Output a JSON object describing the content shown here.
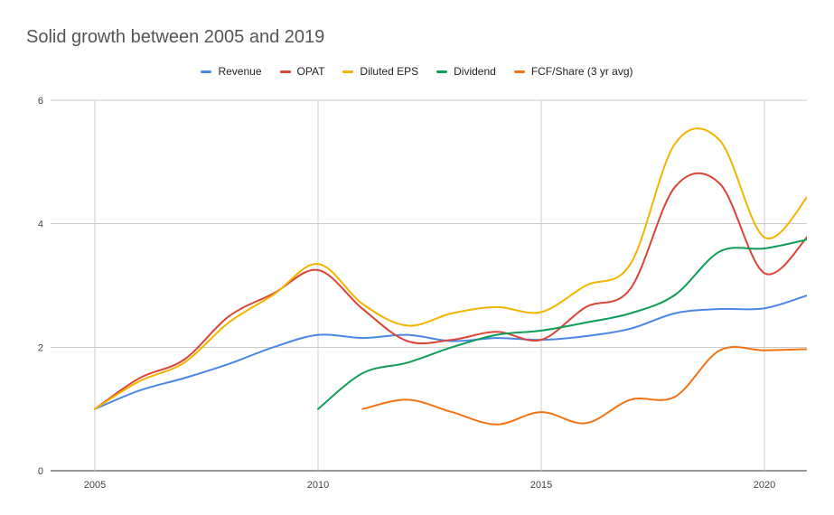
{
  "chart_data": {
    "type": "line",
    "title": "Solid growth between 2005 and 2019",
    "xlabel": "",
    "ylabel": "",
    "xlim": [
      2004,
      2021
    ],
    "ylim": [
      0,
      6
    ],
    "x_ticks": [
      "2005",
      "2010",
      "2015",
      "2020"
    ],
    "y_ticks": [
      "0",
      "2",
      "4",
      "6"
    ],
    "grid": true,
    "legend_position": "top",
    "x": [
      2005,
      2006,
      2007,
      2008,
      2009,
      2010,
      2011,
      2012,
      2013,
      2014,
      2015,
      2016,
      2017,
      2018,
      2019,
      2020,
      2021
    ],
    "series": [
      {
        "name": "Revenue",
        "color": "#4a86e8",
        "values": [
          1.0,
          1.3,
          1.5,
          1.73,
          2.0,
          2.2,
          2.15,
          2.2,
          2.1,
          2.15,
          2.12,
          2.18,
          2.3,
          2.55,
          2.62,
          2.63,
          2.85
        ]
      },
      {
        "name": "OPAT",
        "color": "#db4437",
        "values": [
          1.0,
          1.5,
          1.8,
          2.5,
          2.87,
          3.25,
          2.62,
          2.1,
          2.12,
          2.25,
          2.12,
          2.65,
          2.95,
          4.6,
          4.65,
          3.2,
          3.82
        ]
      },
      {
        "name": "Diluted EPS",
        "color": "#f4b400",
        "values": [
          1.0,
          1.45,
          1.75,
          2.4,
          2.85,
          3.35,
          2.7,
          2.35,
          2.55,
          2.65,
          2.57,
          3.0,
          3.35,
          5.3,
          5.35,
          3.78,
          4.47
        ]
      },
      {
        "name": "Dividend",
        "color": "#0f9d58",
        "values": [
          null,
          null,
          null,
          null,
          null,
          1.0,
          1.58,
          1.75,
          2.0,
          2.2,
          2.27,
          2.4,
          2.55,
          2.85,
          3.55,
          3.6,
          3.75
        ]
      },
      {
        "name": "FCF/Share (3 yr avg)",
        "color": "#f47216",
        "values": [
          null,
          null,
          null,
          null,
          null,
          null,
          1.0,
          1.15,
          0.95,
          0.75,
          0.95,
          0.77,
          1.15,
          1.2,
          1.95,
          1.95,
          1.97
        ]
      }
    ]
  }
}
